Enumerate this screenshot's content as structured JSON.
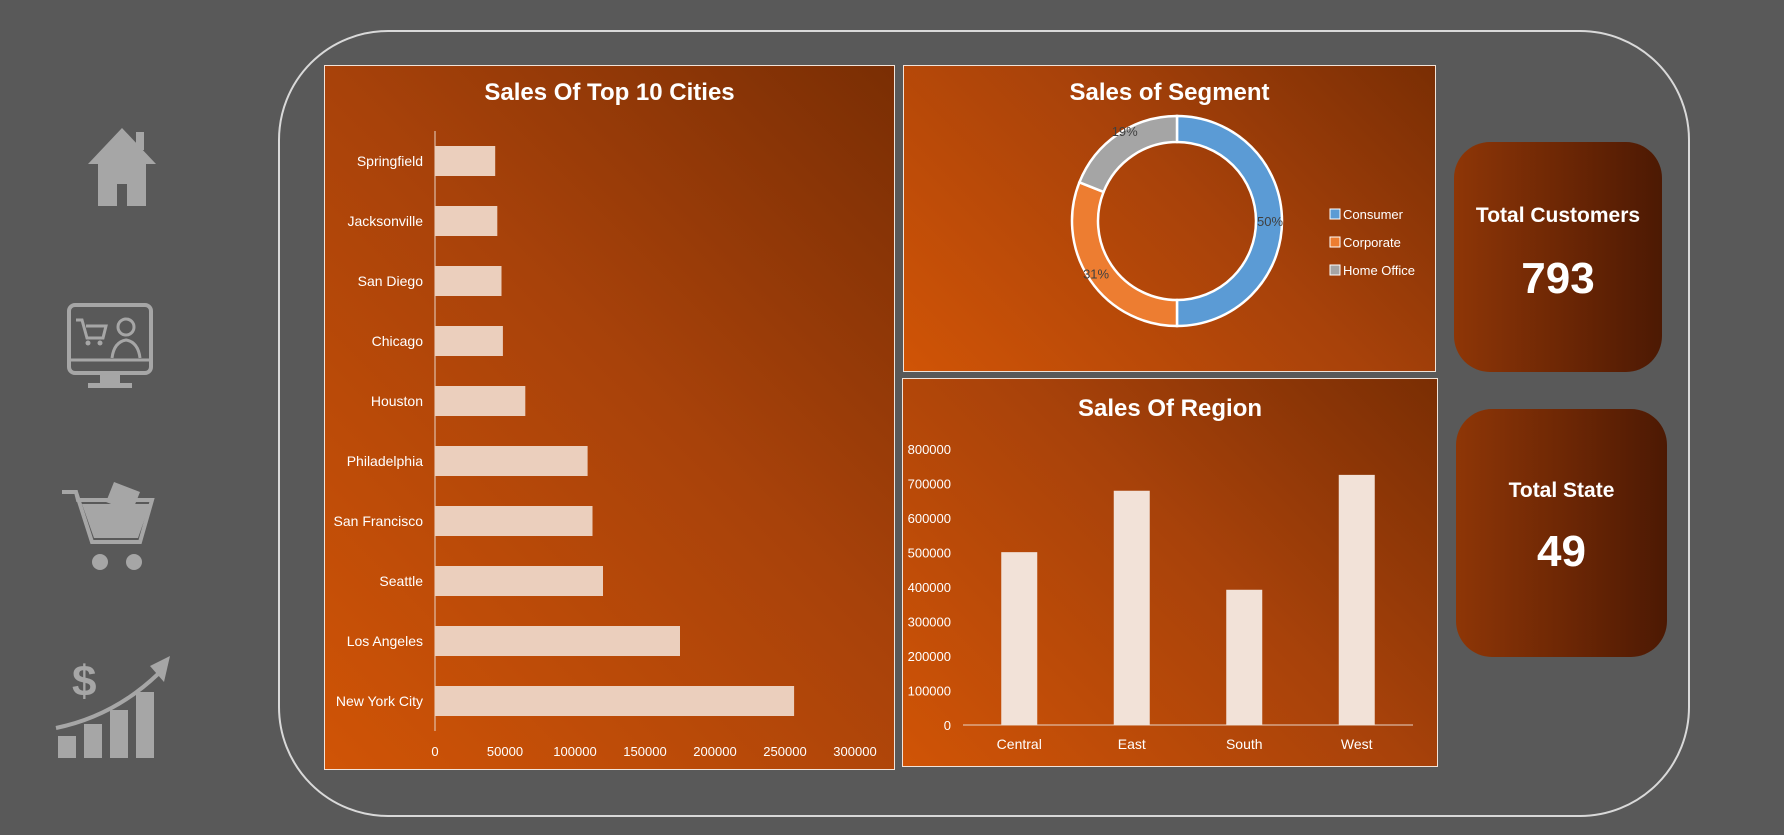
{
  "nav": {
    "items": [
      {
        "name": "home-icon"
      },
      {
        "name": "online-shopping-icon"
      },
      {
        "name": "shopping-cart-icon"
      },
      {
        "name": "sales-growth-icon"
      }
    ]
  },
  "colors": {
    "page_bg": "#595959",
    "bar_fill": "#ebcfbd",
    "region_bar_fill": "#f2e2d8",
    "consumer": "#5b9bd5",
    "corporate": "#ed7d31",
    "home_office": "#a5a5a5"
  },
  "kpis": {
    "customers": {
      "title": "Total Customers",
      "value": "793"
    },
    "state": {
      "title": "Total State",
      "value": "49"
    }
  },
  "chart_data": [
    {
      "type": "bar",
      "orientation": "horizontal",
      "title": "Sales Of Top 10 Cities",
      "categories": [
        "Springfield",
        "Jacksonville",
        "San Diego",
        "Chicago",
        "Houston",
        "Philadelphia",
        "San Francisco",
        "Seattle",
        "Los Angeles",
        "New York City"
      ],
      "values": [
        43000,
        44500,
        47500,
        48500,
        64500,
        109000,
        112500,
        120000,
        175000,
        256500
      ],
      "xlim": [
        0,
        300000
      ],
      "xticks": [
        "0",
        "50000",
        "100000",
        "150000",
        "200000",
        "250000",
        "300000"
      ],
      "grid": false
    },
    {
      "type": "pie",
      "donut": true,
      "title": "Sales of Segment",
      "labels": [
        "Consumer",
        "Corporate",
        "Home Office"
      ],
      "values": [
        50,
        31,
        19
      ],
      "data_labels": [
        "50%",
        "31%",
        "19%"
      ],
      "legend_position": "right"
    },
    {
      "type": "bar",
      "orientation": "vertical",
      "title": "Sales Of Region",
      "categories": [
        "Central",
        "East",
        "South",
        "West"
      ],
      "values": [
        501000,
        679000,
        392000,
        725000
      ],
      "ylim": [
        0,
        800000
      ],
      "yticks": [
        "0",
        "100000",
        "200000",
        "300000",
        "400000",
        "500000",
        "600000",
        "700000",
        "800000"
      ],
      "grid": false
    }
  ]
}
